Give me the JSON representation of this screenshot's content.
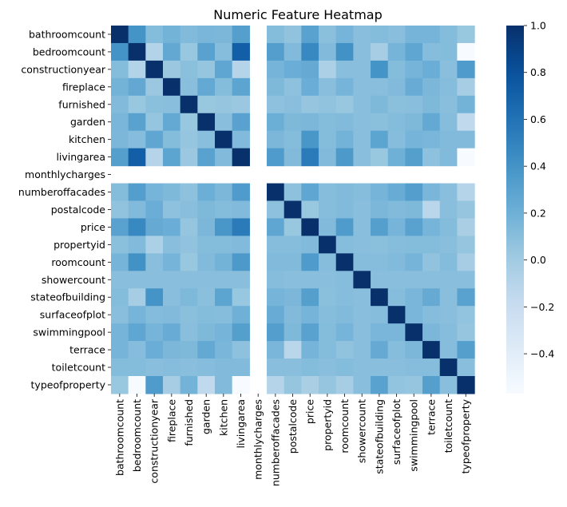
{
  "chart_data": {
    "type": "heatmap",
    "title": "Numeric Feature Heatmap",
    "labels": [
      "bathroomcount",
      "bedroomcount",
      "constructionyear",
      "fireplace",
      "furnished",
      "garden",
      "kitchen",
      "livingarea",
      "monthlycharges",
      "numberoffacades",
      "postalcode",
      "price",
      "propertyid",
      "roomcount",
      "showercount",
      "stateofbuilding",
      "surfaceofplot",
      "swimmingpool",
      "terrace",
      "toiletcount",
      "typeofproperty"
    ],
    "colormap": "Blues",
    "vmin": -0.57,
    "vmax": 1.0,
    "colorbar_ticks": [
      -0.4,
      -0.2,
      0.0,
      0.2,
      0.4,
      0.6,
      0.8,
      1.0
    ],
    "colorbar_tick_labels": [
      "−0.4",
      "−0.2",
      "0.0",
      "0.2",
      "0.4",
      "0.6",
      "0.8",
      "1.0"
    ],
    "missing_label": "monthlycharges",
    "matrix": [
      [
        1.0,
        0.4,
        0.12,
        0.18,
        0.13,
        0.16,
        0.15,
        0.32,
        null,
        0.12,
        0.07,
        0.3,
        0.09,
        0.17,
        0.1,
        0.12,
        0.1,
        0.17,
        0.17,
        0.12,
        0.04
      ],
      [
        0.4,
        1.0,
        -0.08,
        0.26,
        0.04,
        0.3,
        0.11,
        0.72,
        null,
        0.33,
        0.13,
        0.47,
        0.13,
        0.41,
        0.1,
        -0.02,
        0.17,
        0.27,
        0.11,
        0.12,
        -0.57
      ],
      [
        0.12,
        -0.08,
        1.0,
        0.03,
        0.09,
        0.05,
        0.27,
        -0.1,
        null,
        0.17,
        0.22,
        0.24,
        -0.05,
        0.1,
        0.1,
        0.4,
        0.12,
        0.17,
        0.22,
        0.1,
        0.35
      ],
      [
        0.18,
        0.26,
        0.03,
        1.0,
        0.1,
        0.25,
        0.12,
        0.28,
        null,
        0.14,
        0.08,
        0.22,
        0.1,
        0.17,
        0.1,
        0.1,
        0.13,
        0.23,
        0.15,
        0.11,
        -0.02
      ],
      [
        0.13,
        0.04,
        0.09,
        0.1,
        1.0,
        0.04,
        0.05,
        0.03,
        null,
        0.08,
        0.1,
        0.05,
        0.07,
        0.04,
        0.1,
        0.14,
        0.09,
        0.1,
        0.14,
        0.1,
        0.18
      ],
      [
        0.16,
        0.3,
        0.05,
        0.25,
        0.04,
        1.0,
        0.1,
        0.3,
        null,
        0.21,
        0.14,
        0.15,
        0.12,
        0.13,
        0.1,
        0.09,
        0.12,
        0.14,
        0.25,
        0.11,
        -0.15
      ],
      [
        0.15,
        0.11,
        0.27,
        0.12,
        0.05,
        0.1,
        1.0,
        0.13,
        null,
        0.15,
        0.12,
        0.38,
        0.12,
        0.18,
        0.1,
        0.28,
        0.11,
        0.17,
        0.16,
        0.13,
        0.13
      ],
      [
        0.32,
        0.72,
        -0.1,
        0.28,
        0.03,
        0.3,
        0.13,
        1.0,
        null,
        0.35,
        0.13,
        0.55,
        0.13,
        0.36,
        0.1,
        0.04,
        0.2,
        0.32,
        0.08,
        0.13,
        -0.57
      ],
      [
        null,
        null,
        null,
        null,
        null,
        null,
        null,
        null,
        null,
        null,
        null,
        null,
        null,
        null,
        null,
        null,
        null,
        null,
        null,
        null,
        null
      ],
      [
        0.12,
        0.33,
        0.17,
        0.14,
        0.08,
        0.21,
        0.15,
        0.35,
        null,
        1.0,
        0.08,
        0.27,
        0.11,
        0.13,
        0.11,
        0.17,
        0.23,
        0.33,
        0.16,
        0.1,
        -0.1
      ],
      [
        0.07,
        0.13,
        0.22,
        0.08,
        0.1,
        0.14,
        0.12,
        0.13,
        null,
        0.08,
        1.0,
        0.04,
        0.11,
        0.13,
        0.1,
        0.15,
        0.13,
        0.14,
        -0.12,
        0.1,
        0.05
      ],
      [
        0.3,
        0.47,
        0.24,
        0.22,
        0.05,
        0.15,
        0.38,
        0.55,
        null,
        0.27,
        0.04,
        1.0,
        0.13,
        0.35,
        0.1,
        0.32,
        0.17,
        0.3,
        0.17,
        0.12,
        -0.04
      ],
      [
        0.09,
        0.13,
        -0.05,
        0.1,
        0.07,
        0.12,
        0.12,
        0.13,
        null,
        0.11,
        0.11,
        0.13,
        1.0,
        0.11,
        0.1,
        0.09,
        0.11,
        0.12,
        0.12,
        0.1,
        0.05
      ],
      [
        0.17,
        0.41,
        0.1,
        0.17,
        0.04,
        0.13,
        0.18,
        0.36,
        null,
        0.13,
        0.13,
        0.35,
        0.11,
        1.0,
        0.11,
        0.11,
        0.13,
        0.17,
        0.07,
        0.12,
        -0.02
      ],
      [
        0.1,
        0.1,
        0.1,
        0.1,
        0.1,
        0.1,
        0.1,
        0.1,
        null,
        0.11,
        0.1,
        0.1,
        0.1,
        0.11,
        1.0,
        0.1,
        0.1,
        0.1,
        0.1,
        0.1,
        0.1
      ],
      [
        0.12,
        -0.02,
        0.4,
        0.1,
        0.14,
        0.09,
        0.28,
        0.04,
        null,
        0.17,
        0.15,
        0.32,
        0.09,
        0.11,
        0.1,
        1.0,
        0.11,
        0.16,
        0.24,
        0.1,
        0.3
      ],
      [
        0.1,
        0.17,
        0.12,
        0.13,
        0.09,
        0.12,
        0.11,
        0.2,
        null,
        0.23,
        0.13,
        0.17,
        0.11,
        0.13,
        0.1,
        0.11,
        1.0,
        0.16,
        0.11,
        0.1,
        0.06
      ],
      [
        0.17,
        0.27,
        0.17,
        0.23,
        0.1,
        0.14,
        0.17,
        0.32,
        null,
        0.33,
        0.14,
        0.3,
        0.12,
        0.17,
        0.1,
        0.16,
        0.16,
        1.0,
        0.15,
        0.11,
        0.05
      ],
      [
        0.17,
        0.11,
        0.22,
        0.15,
        0.14,
        0.25,
        0.16,
        0.08,
        null,
        0.16,
        -0.12,
        0.17,
        0.12,
        0.07,
        0.1,
        0.24,
        0.11,
        0.15,
        1.0,
        0.11,
        0.32
      ],
      [
        0.12,
        0.12,
        0.1,
        0.11,
        0.1,
        0.11,
        0.13,
        0.13,
        null,
        0.1,
        0.1,
        0.12,
        0.1,
        0.12,
        0.1,
        0.1,
        0.1,
        0.11,
        0.11,
        1.0,
        0.1
      ],
      [
        0.04,
        -0.57,
        0.35,
        -0.02,
        0.18,
        -0.15,
        0.13,
        -0.57,
        null,
        -0.1,
        0.05,
        -0.04,
        0.05,
        -0.02,
        0.1,
        0.3,
        0.06,
        0.05,
        0.32,
        0.1,
        1.0
      ]
    ]
  }
}
